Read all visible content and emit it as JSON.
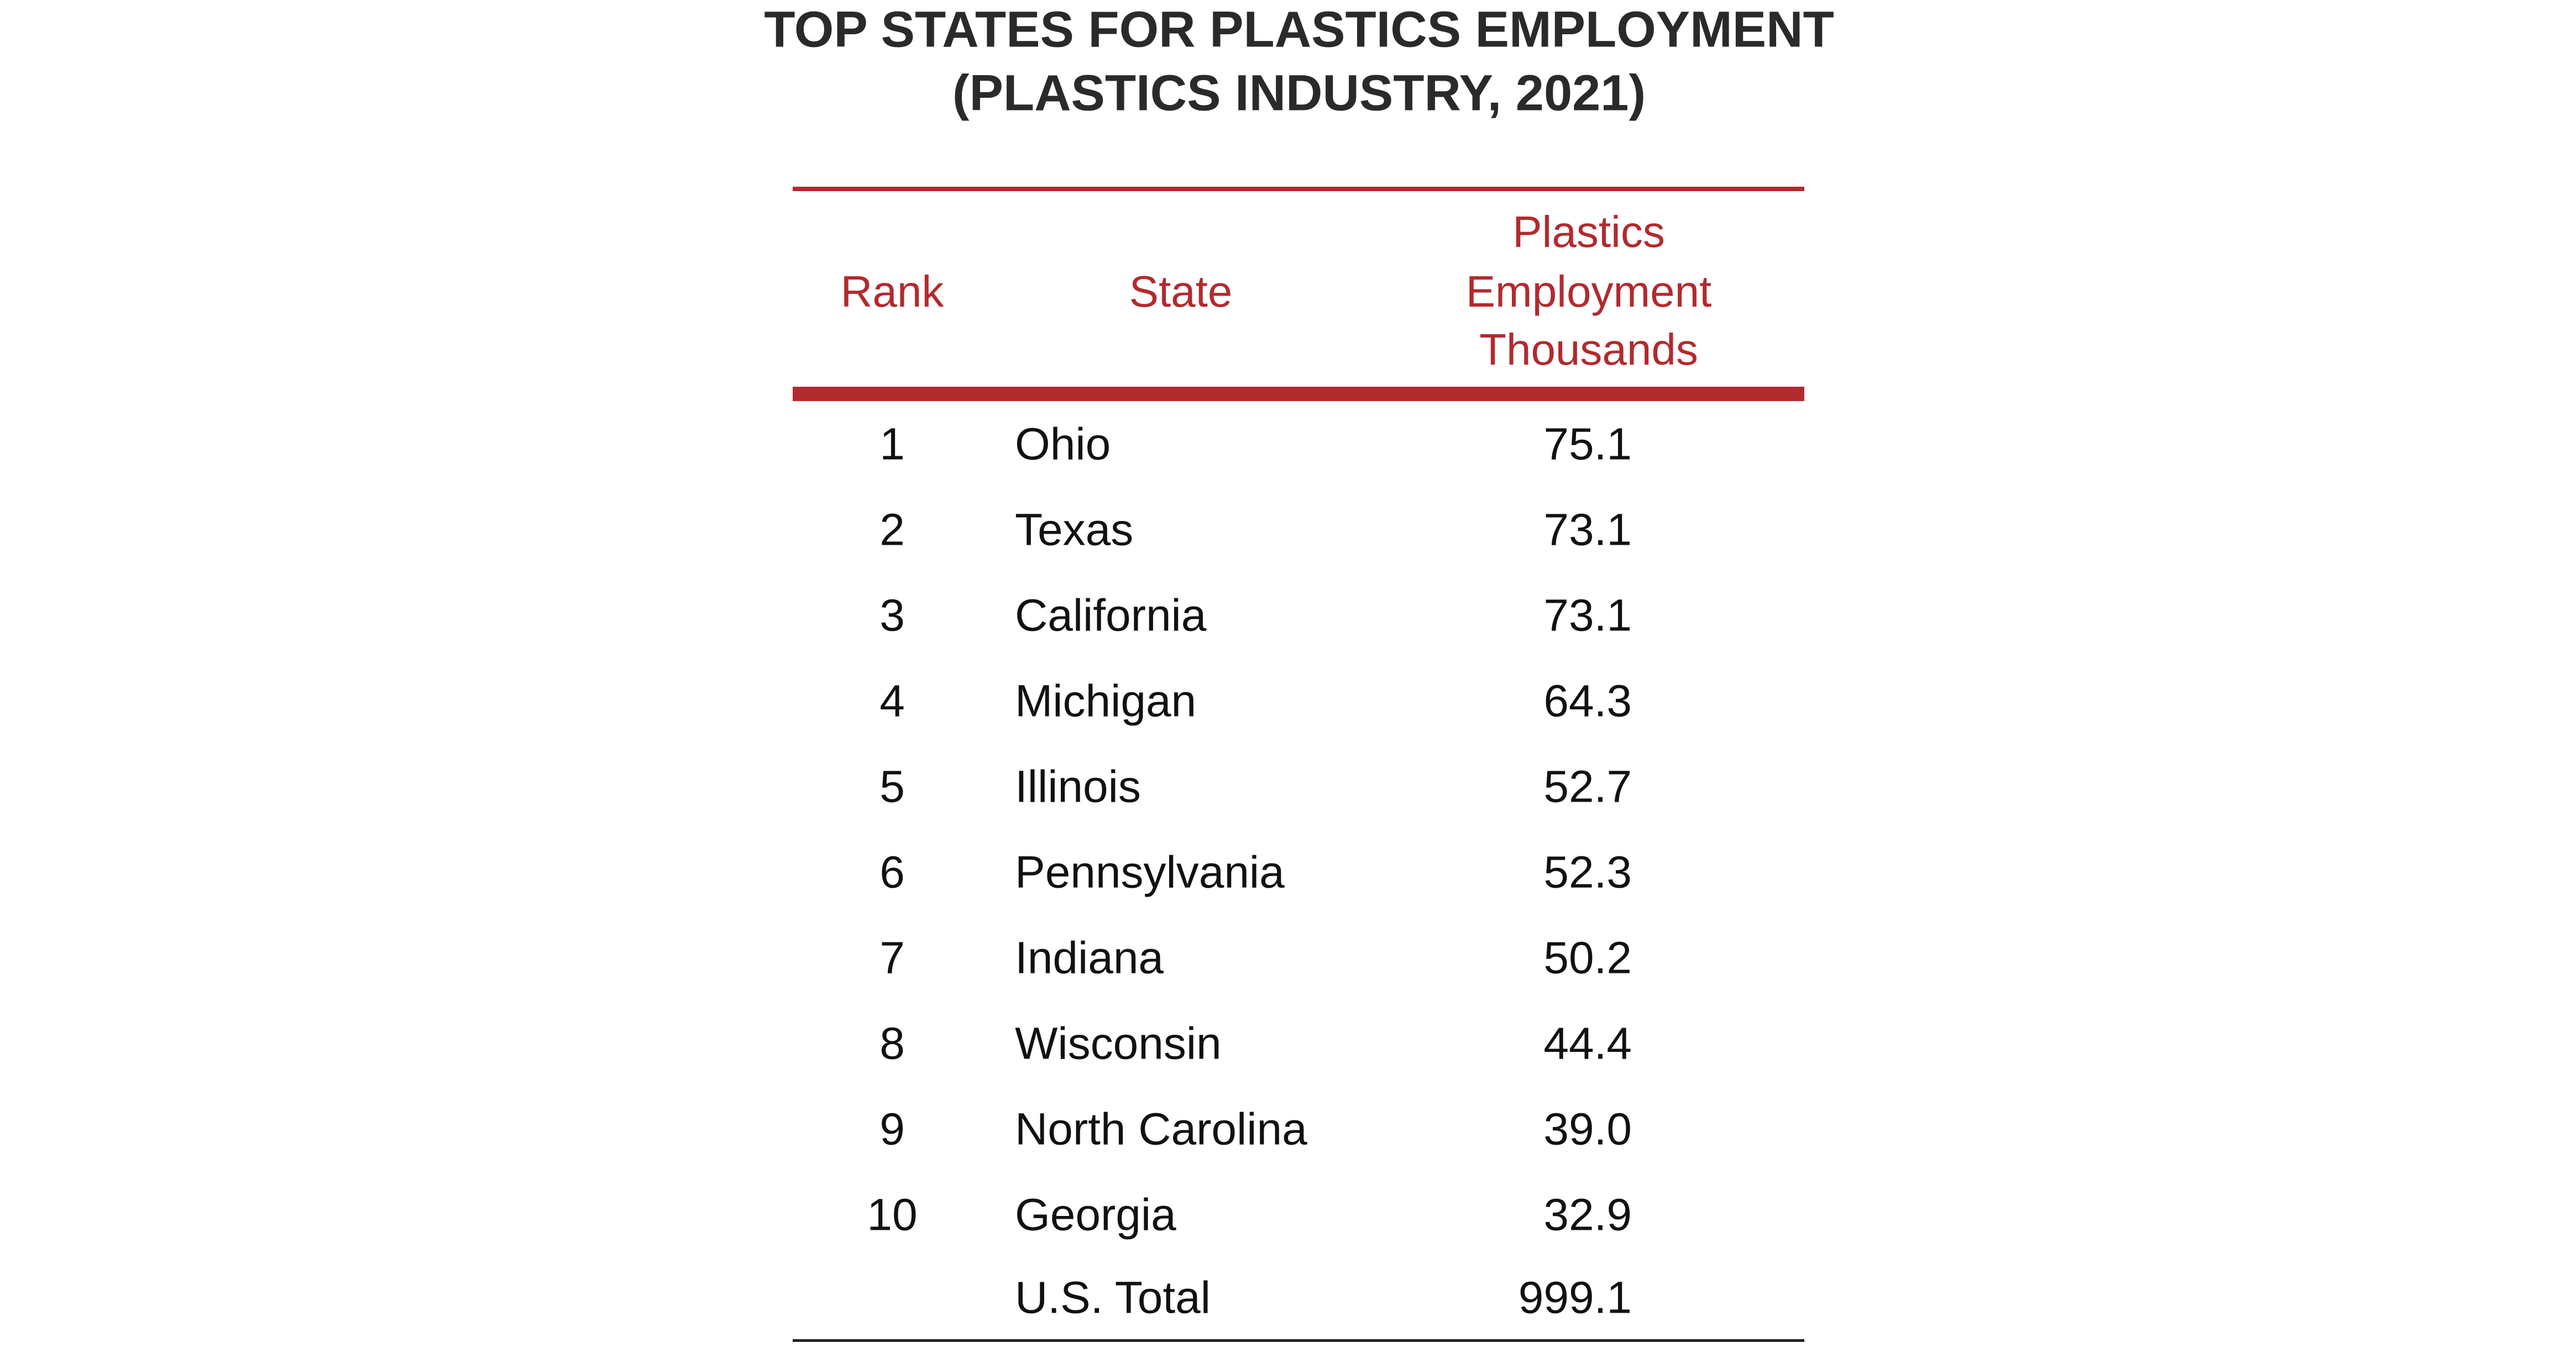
{
  "title": [
    "TOP STATES FOR PLASTICS EMPLOYMENT",
    "(PLASTICS INDUSTRY, 2021)"
  ],
  "table": {
    "header": {
      "rank": "Rank",
      "state": "State",
      "employment": [
        "Plastics",
        "Employment",
        "Thousands"
      ]
    },
    "rows": [
      [
        "1",
        "Ohio",
        "75.1"
      ],
      [
        "2",
        "Texas",
        "73.1"
      ],
      [
        "3",
        "California",
        "73.1"
      ],
      [
        "4",
        "Michigan",
        "64.3"
      ],
      [
        "5",
        "Illinois",
        "52.7"
      ],
      [
        "6",
        "Pennsylvania",
        "52.3"
      ],
      [
        "7",
        "Indiana",
        "50.2"
      ],
      [
        "8",
        "Wisconsin",
        "44.4"
      ],
      [
        "9",
        "North Carolina",
        "39.0"
      ],
      [
        "10",
        "Georgia",
        "32.9"
      ]
    ],
    "total": {
      "label": "U.S. Total",
      "value": "999.1"
    }
  }
}
